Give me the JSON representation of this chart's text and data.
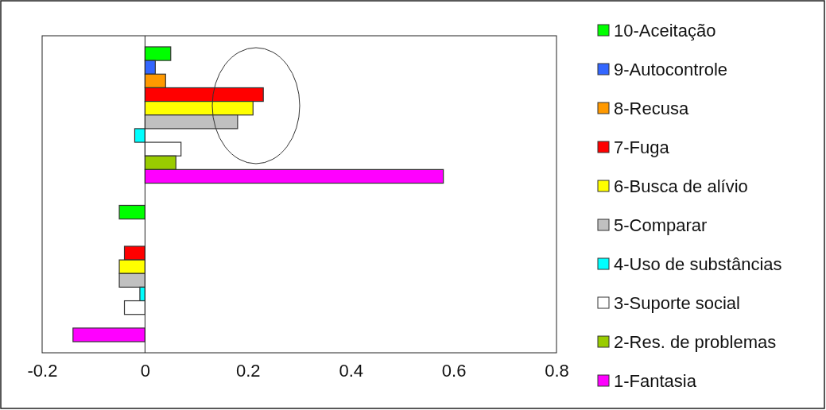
{
  "chart_data": {
    "type": "bar",
    "orientation": "horizontal",
    "categories": [
      null,
      null
    ],
    "series": [
      {
        "name": "10-Aceitação",
        "color": "#00ff00",
        "values": [
          0.05,
          -0.05
        ]
      },
      {
        "name": "9-Autocontrole",
        "color": "#3366ff",
        "values": [
          0.02,
          null
        ]
      },
      {
        "name": "8-Recusa",
        "color": "#ff9900",
        "values": [
          0.04,
          null
        ]
      },
      {
        "name": "7-Fuga",
        "color": "#ff0000",
        "values": [
          0.23,
          -0.04
        ]
      },
      {
        "name": "6-Busca de alívio",
        "color": "#ffff00",
        "values": [
          0.21,
          -0.05
        ]
      },
      {
        "name": "5-Comparar",
        "color": "#c0c0c0",
        "values": [
          0.18,
          -0.05
        ]
      },
      {
        "name": "4-Uso de substâncias",
        "color": "#00ffff",
        "values": [
          -0.02,
          -0.01
        ]
      },
      {
        "name": "3-Suporte social",
        "color": "#ffffff",
        "values": [
          0.07,
          -0.04
        ]
      },
      {
        "name": "2-Res. de problemas",
        "color": "#99cc00",
        "values": [
          0.06,
          null
        ]
      },
      {
        "name": "1-Fantasia",
        "color": "#ff00ff",
        "values": [
          0.58,
          -0.14
        ]
      }
    ],
    "xlim": [
      -0.2,
      0.8
    ],
    "xticks": [
      -0.2,
      0,
      0.2,
      0.4,
      0.6,
      0.8
    ],
    "legend": "right"
  }
}
